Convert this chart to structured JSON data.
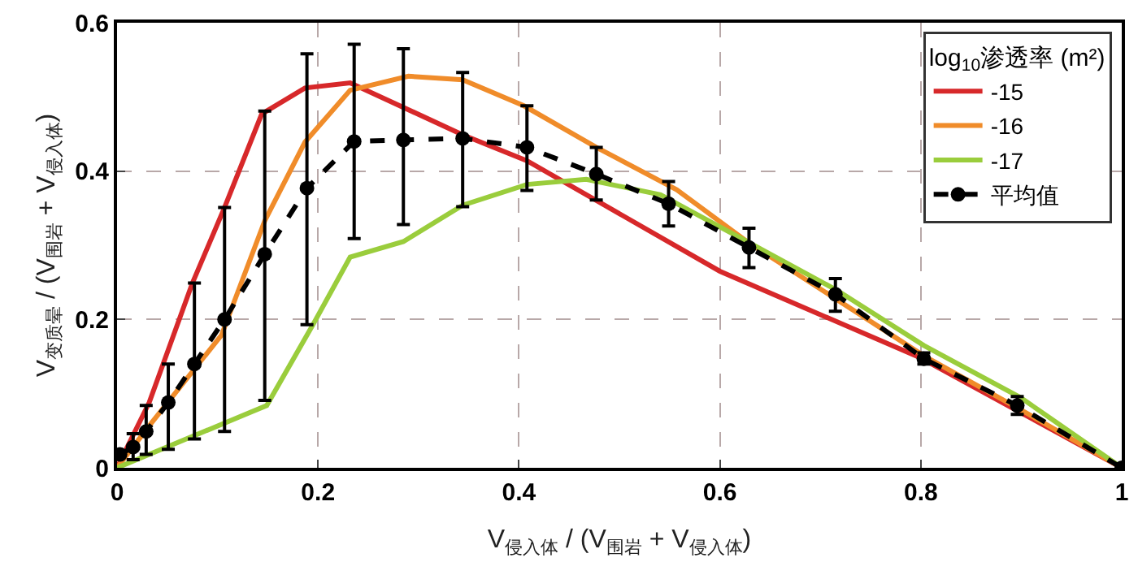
{
  "chart_data": {
    "type": "line",
    "xlabel": "V$_{侵入体}$ / (V$_{围岩}$ + V$_{侵入体}$)",
    "ylabel": "V$_{变质晕}$ / (V$_{围岩}$ + V$_{侵入体}$)",
    "legend_title": "log$_{10}$渗透率 (m²)",
    "xlim": [
      0,
      1
    ],
    "ylim": [
      0,
      0.6
    ],
    "xticks": [
      0,
      0.2,
      0.4,
      0.6,
      0.8,
      1
    ],
    "yticks": [
      0,
      0.2,
      0.4,
      0.6
    ],
    "grid": true,
    "legend": "top right",
    "series": [
      {
        "name": "-15",
        "color": "#d7282a",
        "line_style": "solid",
        "marker": "none",
        "x": [
          0,
          0.032,
          0.075,
          0.107,
          0.144,
          0.187,
          0.232,
          0.344,
          0.408,
          0.6,
          0.8,
          1
        ],
        "values": [
          0,
          0.088,
          0.249,
          0.351,
          0.477,
          0.512,
          0.519,
          0.449,
          0.414,
          0.265,
          0.148,
          0
        ]
      },
      {
        "name": "-16",
        "color": "#f08c2a",
        "line_style": "solid",
        "marker": "none",
        "x": [
          0,
          0.034,
          0.104,
          0.147,
          0.187,
          0.232,
          0.29,
          0.344,
          0.405,
          0.477,
          0.557,
          0.627,
          0.803,
          0.896,
          1
        ],
        "values": [
          0,
          0.06,
          0.179,
          0.333,
          0.439,
          0.509,
          0.528,
          0.523,
          0.488,
          0.432,
          0.375,
          0.305,
          0.151,
          0.081,
          0
        ]
      },
      {
        "name": "-17",
        "color": "#9acd3c",
        "line_style": "solid",
        "marker": "none",
        "x": [
          0,
          0.149,
          0.195,
          0.232,
          0.285,
          0.344,
          0.408,
          0.467,
          0.541,
          0.627,
          0.717,
          0.803,
          0.899,
          1
        ],
        "values": [
          0,
          0.084,
          0.193,
          0.284,
          0.305,
          0.354,
          0.382,
          0.389,
          0.368,
          0.305,
          0.239,
          0.165,
          0.095,
          0
        ]
      },
      {
        "name": "平均值",
        "color": "#000000",
        "line_style": "dashed",
        "marker": "circle",
        "x": [
          0.003,
          0.016,
          0.029,
          0.051,
          0.077,
          0.107,
          0.147,
          0.189,
          0.236,
          0.285,
          0.344,
          0.408,
          0.477,
          0.549,
          0.629,
          0.715,
          0.803,
          0.896,
          1
        ],
        "values": [
          0.018,
          0.028,
          0.049,
          0.088,
          0.14,
          0.2,
          0.288,
          0.377,
          0.44,
          0.442,
          0.444,
          0.432,
          0.396,
          0.356,
          0.297,
          0.234,
          0.147,
          0.084,
          0
        ],
        "errors": [
          null,
          [
            0.011,
            0.046
          ],
          [
            0.018,
            0.084
          ],
          [
            0.025,
            0.14
          ],
          [
            0.039,
            0.249
          ],
          [
            0.049,
            0.351
          ],
          [
            0.091,
            0.481
          ],
          [
            0.193,
            0.558
          ],
          [
            0.309,
            0.571
          ],
          [
            0.328,
            0.565
          ],
          [
            0.352,
            0.533
          ],
          [
            0.374,
            0.488
          ],
          [
            0.361,
            0.432
          ],
          [
            0.326,
            0.386
          ],
          [
            0.27,
            0.323
          ],
          [
            0.211,
            0.255
          ],
          [
            0.14,
            0.155
          ],
          [
            0.072,
            0.096
          ],
          null
        ]
      }
    ]
  }
}
